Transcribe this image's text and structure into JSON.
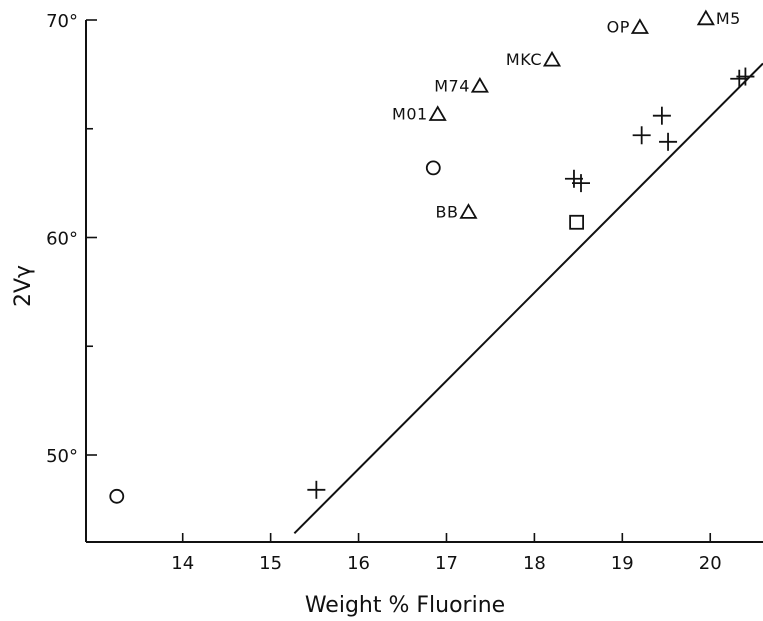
{
  "chart_data": {
    "type": "scatter",
    "title": "",
    "xlabel": "Weight % Fluorine",
    "ylabel": "2Vγ",
    "xlim": [
      12.9,
      20.6
    ],
    "ylim": [
      46,
      70
    ],
    "xticks": [
      14,
      15,
      16,
      17,
      18,
      19,
      20
    ],
    "yticks": [
      50,
      60,
      70
    ],
    "yminor_ticks": [
      55,
      65
    ],
    "xtick_labels": [
      "14",
      "15",
      "16",
      "17",
      "18",
      "19",
      "20"
    ],
    "ytick_labels": [
      "50°",
      "60°",
      "70°"
    ],
    "grid": false,
    "legend": "none",
    "fit_line": {
      "x": [
        15.27,
        20.6
      ],
      "y": [
        46.4,
        68.0
      ]
    },
    "series": [
      {
        "marker": "triangle",
        "points": [
          {
            "label": "M5",
            "x": 19.95,
            "y": 70.1
          },
          {
            "label": "OP",
            "x": 19.2,
            "y": 69.7
          },
          {
            "label": "MKC",
            "x": 18.2,
            "y": 68.2
          },
          {
            "label": "M74",
            "x": 17.38,
            "y": 67.0
          },
          {
            "label": "M01",
            "x": 16.9,
            "y": 65.7
          },
          {
            "label": "BB",
            "x": 17.25,
            "y": 61.2
          }
        ]
      },
      {
        "marker": "circle",
        "points": [
          {
            "label": "",
            "x": 13.25,
            "y": 48.1
          },
          {
            "label": "",
            "x": 16.85,
            "y": 63.2
          }
        ]
      },
      {
        "marker": "square",
        "points": [
          {
            "label": "",
            "x": 18.48,
            "y": 60.7
          }
        ]
      },
      {
        "marker": "plus",
        "points": [
          {
            "label": "",
            "x": 15.52,
            "y": 48.4
          },
          {
            "label": "",
            "x": 18.45,
            "y": 62.7
          },
          {
            "label": "",
            "x": 18.53,
            "y": 62.5
          },
          {
            "label": "",
            "x": 19.22,
            "y": 64.7
          },
          {
            "label": "",
            "x": 19.45,
            "y": 65.6
          },
          {
            "label": "",
            "x": 19.52,
            "y": 64.4
          },
          {
            "label": "",
            "x": 20.33,
            "y": 67.3
          },
          {
            "label": "",
            "x": 20.4,
            "y": 67.4
          }
        ]
      }
    ]
  }
}
